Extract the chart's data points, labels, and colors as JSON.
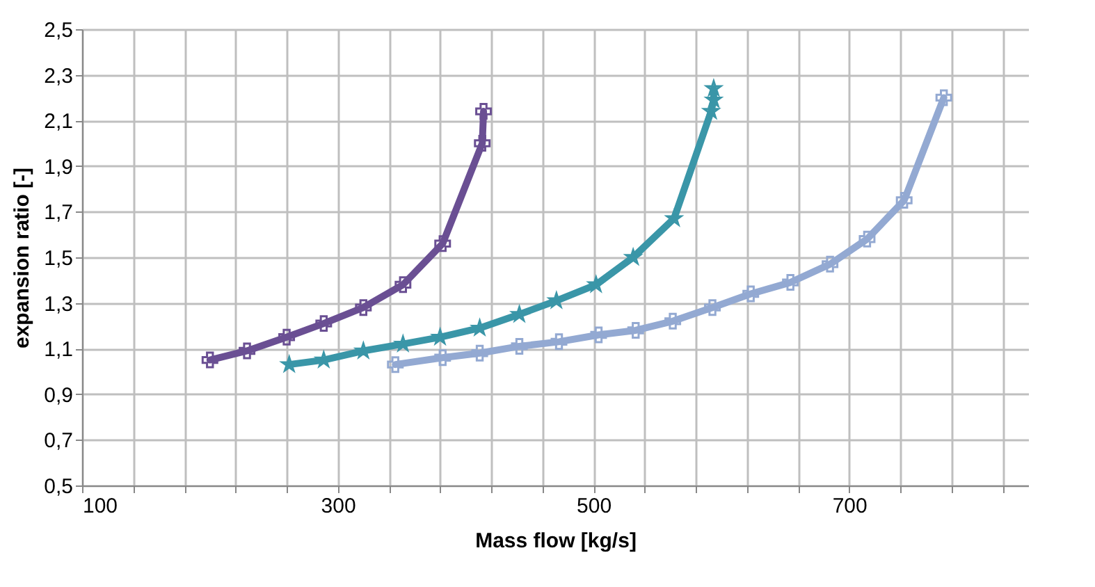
{
  "chart_data": {
    "type": "line",
    "xlabel": "Mass flow [kg/s]",
    "ylabel": "expansion ratio [-]",
    "xlim": [
      100,
      840
    ],
    "xticks": [
      100,
      {
        "value": 140,
        "label": null
      },
      {
        "value": 180,
        "label": null
      },
      {
        "value": 220,
        "label": null
      },
      {
        "value": 260,
        "label": null
      },
      300,
      {
        "value": 340,
        "label": null
      },
      {
        "value": 380,
        "label": null
      },
      {
        "value": 420,
        "label": null
      },
      {
        "value": 460,
        "label": null
      },
      500,
      {
        "value": 540,
        "label": null
      },
      {
        "value": 580,
        "label": null
      },
      {
        "value": 620,
        "label": null
      },
      {
        "value": 660,
        "label": null
      },
      700,
      {
        "value": 740,
        "label": null
      },
      {
        "value": 780,
        "label": null
      },
      {
        "value": 820,
        "label": null
      }
    ],
    "ylim": [
      0.5,
      2.5
    ],
    "yticks": [
      {
        "value": 0.5,
        "label": "0,5"
      },
      {
        "value": 0.7,
        "label": "0,7"
      },
      {
        "value": 0.9,
        "label": "0,9"
      },
      {
        "value": 1.1,
        "label": "1,1"
      },
      {
        "value": 1.3,
        "label": "1,3"
      },
      {
        "value": 1.5,
        "label": "1,5"
      },
      {
        "value": 1.7,
        "label": "1,7"
      },
      {
        "value": 1.9,
        "label": "1,9"
      },
      {
        "value": 2.1,
        "label": "2,1"
      },
      {
        "value": 2.3,
        "label": "2,3"
      },
      {
        "value": 2.5,
        "label": "2,5"
      }
    ],
    "grid": true,
    "line_style": "solid",
    "series": [
      {
        "color": "#6a4f93",
        "marker": "cross",
        "x": [
          200,
          229,
          260,
          289,
          320,
          351,
          382,
          413,
          414
        ],
        "values": [
          1.05,
          1.09,
          1.15,
          1.21,
          1.28,
          1.38,
          1.56,
          2.0,
          2.14
        ]
      },
      {
        "color": "#3a96a8",
        "marker": "star",
        "x": [
          262,
          289,
          320,
          351,
          380,
          411,
          442,
          471,
          502,
          531,
          563,
          592,
          594,
          594
        ],
        "values": [
          1.03,
          1.05,
          1.09,
          1.12,
          1.15,
          1.19,
          1.25,
          1.31,
          1.38,
          1.5,
          1.67,
          2.14,
          2.19,
          2.24
        ]
      },
      {
        "color": "#93a9d2",
        "marker": "cross",
        "x": [
          345,
          382,
          411,
          442,
          473,
          504,
          533,
          562,
          593,
          623,
          654,
          685,
          714,
          743,
          774
        ],
        "values": [
          1.03,
          1.06,
          1.08,
          1.11,
          1.13,
          1.16,
          1.18,
          1.22,
          1.28,
          1.34,
          1.39,
          1.47,
          1.58,
          1.75,
          2.2
        ]
      }
    ]
  }
}
